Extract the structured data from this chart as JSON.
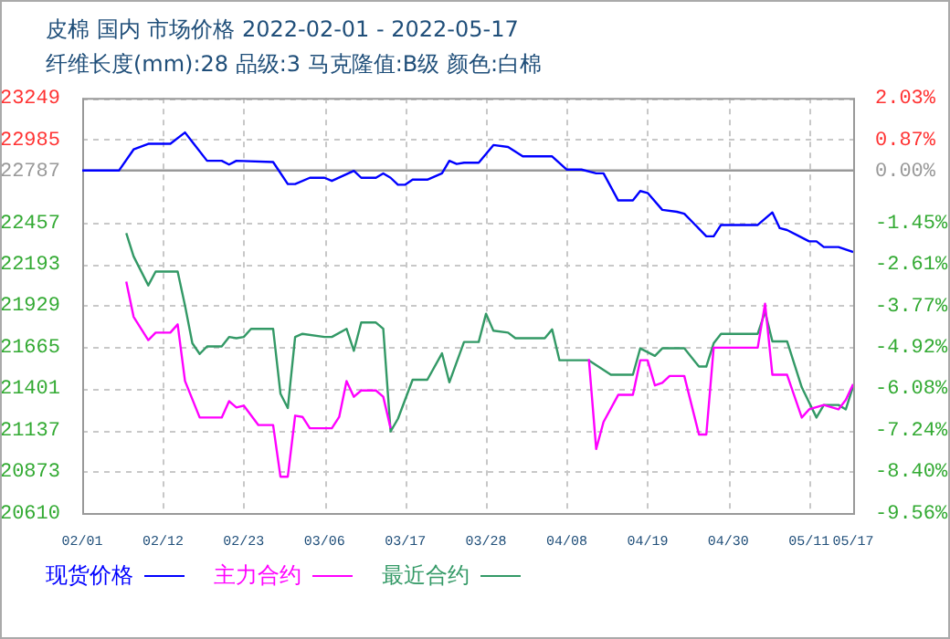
{
  "chart_data": {
    "type": "line",
    "title": "皮棉 国内 市场价格 2022-02-01 - 2022-05-17",
    "subtitle": "纤维长度(mm):28 品级:3 马克隆值:B级 颜色:白棉",
    "series": [
      {
        "name": "现货价格",
        "color": "#0000ff",
        "x": [
          "2022-02-01",
          "2022-02-06",
          "2022-02-08",
          "2022-02-10",
          "2022-02-13",
          "2022-02-15",
          "2022-02-16",
          "2022-02-18",
          "2022-02-20",
          "2022-02-21",
          "2022-02-22",
          "2022-02-27",
          "2022-03-01",
          "2022-03-02",
          "2022-03-04",
          "2022-03-06",
          "2022-03-07",
          "2022-03-10",
          "2022-03-11",
          "2022-03-13",
          "2022-03-14",
          "2022-03-15",
          "2022-03-16",
          "2022-03-17",
          "2022-03-18",
          "2022-03-20",
          "2022-03-22",
          "2022-03-23",
          "2022-03-24",
          "2022-03-25",
          "2022-03-27",
          "2022-03-29",
          "2022-03-31",
          "2022-04-02",
          "2022-04-06",
          "2022-04-08",
          "2022-04-10",
          "2022-04-12",
          "2022-04-13",
          "2022-04-15",
          "2022-04-17",
          "2022-04-18",
          "2022-04-19",
          "2022-04-21",
          "2022-04-23",
          "2022-04-24",
          "2022-04-27",
          "2022-04-28",
          "2022-04-29",
          "2022-05-04",
          "2022-05-06",
          "2022-05-07",
          "2022-05-08",
          "2022-05-11",
          "2022-05-12",
          "2022-05-13",
          "2022-05-15",
          "2022-05-17"
        ],
        "values": [
          22787,
          22787,
          22921,
          22957,
          22957,
          23029,
          22969,
          22849,
          22849,
          22825,
          22849,
          22841,
          22701,
          22701,
          22741,
          22741,
          22721,
          22785,
          22741,
          22741,
          22769,
          22741,
          22697,
          22697,
          22729,
          22729,
          22769,
          22849,
          22829,
          22837,
          22837,
          22949,
          22937,
          22877,
          22877,
          22793,
          22793,
          22769,
          22769,
          22597,
          22597,
          22657,
          22645,
          22537,
          22525,
          22513,
          22369,
          22369,
          22441,
          22441,
          22521,
          22421,
          22409,
          22337,
          22337,
          22301,
          22301,
          22269
        ]
      },
      {
        "name": "主力合约",
        "color": "#ff00ff",
        "x": [
          "2022-02-07",
          "2022-02-08",
          "2022-02-10",
          "2022-02-11",
          "2022-02-13",
          "2022-02-14",
          "2022-02-15",
          "2022-02-17",
          "2022-02-20",
          "2022-02-21",
          "2022-02-22",
          "2022-02-23",
          "2022-02-25",
          "2022-02-27",
          "2022-02-28",
          "2022-03-01",
          "2022-03-02",
          "2022-03-03",
          "2022-03-04",
          "2022-03-07",
          "2022-03-08",
          "2022-03-09",
          "2022-03-10",
          "2022-03-11",
          "2022-03-13",
          "2022-03-14",
          "2022-03-15",
          "2022-03-16",
          "2022-04-11",
          "2022-04-12",
          "2022-04-13",
          "2022-04-15",
          "2022-04-17",
          "2022-04-18",
          "2022-04-19",
          "2022-04-20",
          "2022-04-21",
          "2022-04-22",
          "2022-04-24",
          "2022-04-26",
          "2022-04-27",
          "2022-04-28",
          "2022-05-04",
          "2022-05-05",
          "2022-05-06",
          "2022-05-08",
          "2022-05-10",
          "2022-05-11",
          "2022-05-13",
          "2022-05-15",
          "2022-05-16",
          "2022-05-17"
        ],
        "values": [
          22081,
          21857,
          21709,
          21757,
          21757,
          21809,
          21449,
          21217,
          21217,
          21321,
          21281,
          21293,
          21169,
          21169,
          20841,
          20841,
          21229,
          21221,
          21149,
          21149,
          21221,
          21449,
          21349,
          21389,
          21389,
          21349,
          21149,
          null,
          21589,
          21017,
          21189,
          21361,
          21361,
          21581,
          21581,
          21421,
          21437,
          21481,
          21481,
          21109,
          21109,
          21661,
          21661,
          21941,
          21489,
          21489,
          21217,
          21269,
          21297,
          21269,
          21329,
          21429
        ]
      },
      {
        "name": "最近合约",
        "color": "#339966",
        "x": [
          "2022-02-07",
          "2022-02-08",
          "2022-02-10",
          "2022-02-11",
          "2022-02-14",
          "2022-02-15",
          "2022-02-16",
          "2022-02-17",
          "2022-02-18",
          "2022-02-20",
          "2022-02-21",
          "2022-02-22",
          "2022-02-23",
          "2022-02-24",
          "2022-02-27",
          "2022-02-28",
          "2022-03-01",
          "2022-03-02",
          "2022-03-03",
          "2022-03-06",
          "2022-03-07",
          "2022-03-09",
          "2022-03-10",
          "2022-03-11",
          "2022-03-13",
          "2022-03-14",
          "2022-03-15",
          "2022-03-16",
          "2022-03-18",
          "2022-03-20",
          "2022-03-22",
          "2022-03-23",
          "2022-03-25",
          "2022-03-27",
          "2022-03-28",
          "2022-03-29",
          "2022-03-31",
          "2022-04-01",
          "2022-04-05",
          "2022-04-06",
          "2022-04-07",
          "2022-04-11",
          "2022-04-14",
          "2022-04-17",
          "2022-04-18",
          "2022-04-20",
          "2022-04-21",
          "2022-04-24",
          "2022-04-26",
          "2022-04-27",
          "2022-04-28",
          "2022-04-29",
          "2022-05-04",
          "2022-05-05",
          "2022-05-06",
          "2022-05-08",
          "2022-05-10",
          "2022-05-12",
          "2022-05-13",
          "2022-05-15",
          "2022-05-16",
          "2022-05-17"
        ],
        "values": [
          22389,
          22241,
          22057,
          22145,
          22145,
          21929,
          21689,
          21621,
          21669,
          21669,
          21729,
          21721,
          21729,
          21781,
          21781,
          21369,
          21277,
          21729,
          21749,
          21729,
          21729,
          21781,
          21641,
          21821,
          21821,
          21781,
          21129,
          21209,
          21457,
          21457,
          21625,
          21441,
          21697,
          21697,
          21877,
          21769,
          21757,
          21721,
          21721,
          21777,
          21581,
          21581,
          21489,
          21489,
          21657,
          21609,
          21657,
          21657,
          21541,
          21541,
          21689,
          21749,
          21749,
          21889,
          21701,
          21701,
          21409,
          21217,
          21297,
          21297,
          21269,
          21417
        ]
      }
    ],
    "xlim": [
      "2022-02-01",
      "2022-05-17"
    ],
    "xticks": [
      {
        "value": "2022-02-01",
        "label": "02/01"
      },
      {
        "value": "2022-02-12",
        "label": "02/12"
      },
      {
        "value": "2022-02-23",
        "label": "02/23"
      },
      {
        "value": "2022-03-06",
        "label": "03/06"
      },
      {
        "value": "2022-03-17",
        "label": "03/17"
      },
      {
        "value": "2022-03-28",
        "label": "03/28"
      },
      {
        "value": "2022-04-08",
        "label": "04/08"
      },
      {
        "value": "2022-04-19",
        "label": "04/19"
      },
      {
        "value": "2022-04-30",
        "label": "04/30"
      },
      {
        "value": "2022-05-11",
        "label": "05/11"
      },
      {
        "value": "2022-05-17",
        "label": "05/17"
      }
    ],
    "ylim": [
      20610,
      23249
    ],
    "yticks": [
      23249,
      22985,
      22787,
      22457,
      22193,
      21929,
      21665,
      21401,
      21137,
      20873,
      20610
    ],
    "y2lim": [
      -9.56,
      2.03
    ],
    "y2ticks": [
      {
        "value": 2.03,
        "label": "2.03%"
      },
      {
        "value": 0.87,
        "label": "0.87%"
      },
      {
        "value": 0,
        "label": "0.00%"
      },
      {
        "value": -1.45,
        "label": "-1.45%"
      },
      {
        "value": -2.61,
        "label": "-2.61%"
      },
      {
        "value": -3.77,
        "label": "-3.77%"
      },
      {
        "value": -4.92,
        "label": "-4.92%"
      },
      {
        "value": -6.08,
        "label": "-6.08%"
      },
      {
        "value": -7.24,
        "label": "-7.24%"
      },
      {
        "value": -8.4,
        "label": "-8.40%"
      },
      {
        "value": -9.56,
        "label": "-9.56%"
      }
    ],
    "ref_lines": [
      {
        "axis": "y",
        "value": 22787,
        "color": "#999999"
      }
    ],
    "grid": true,
    "legend": "bottom left",
    "marker": "none",
    "line_style": "solid"
  }
}
